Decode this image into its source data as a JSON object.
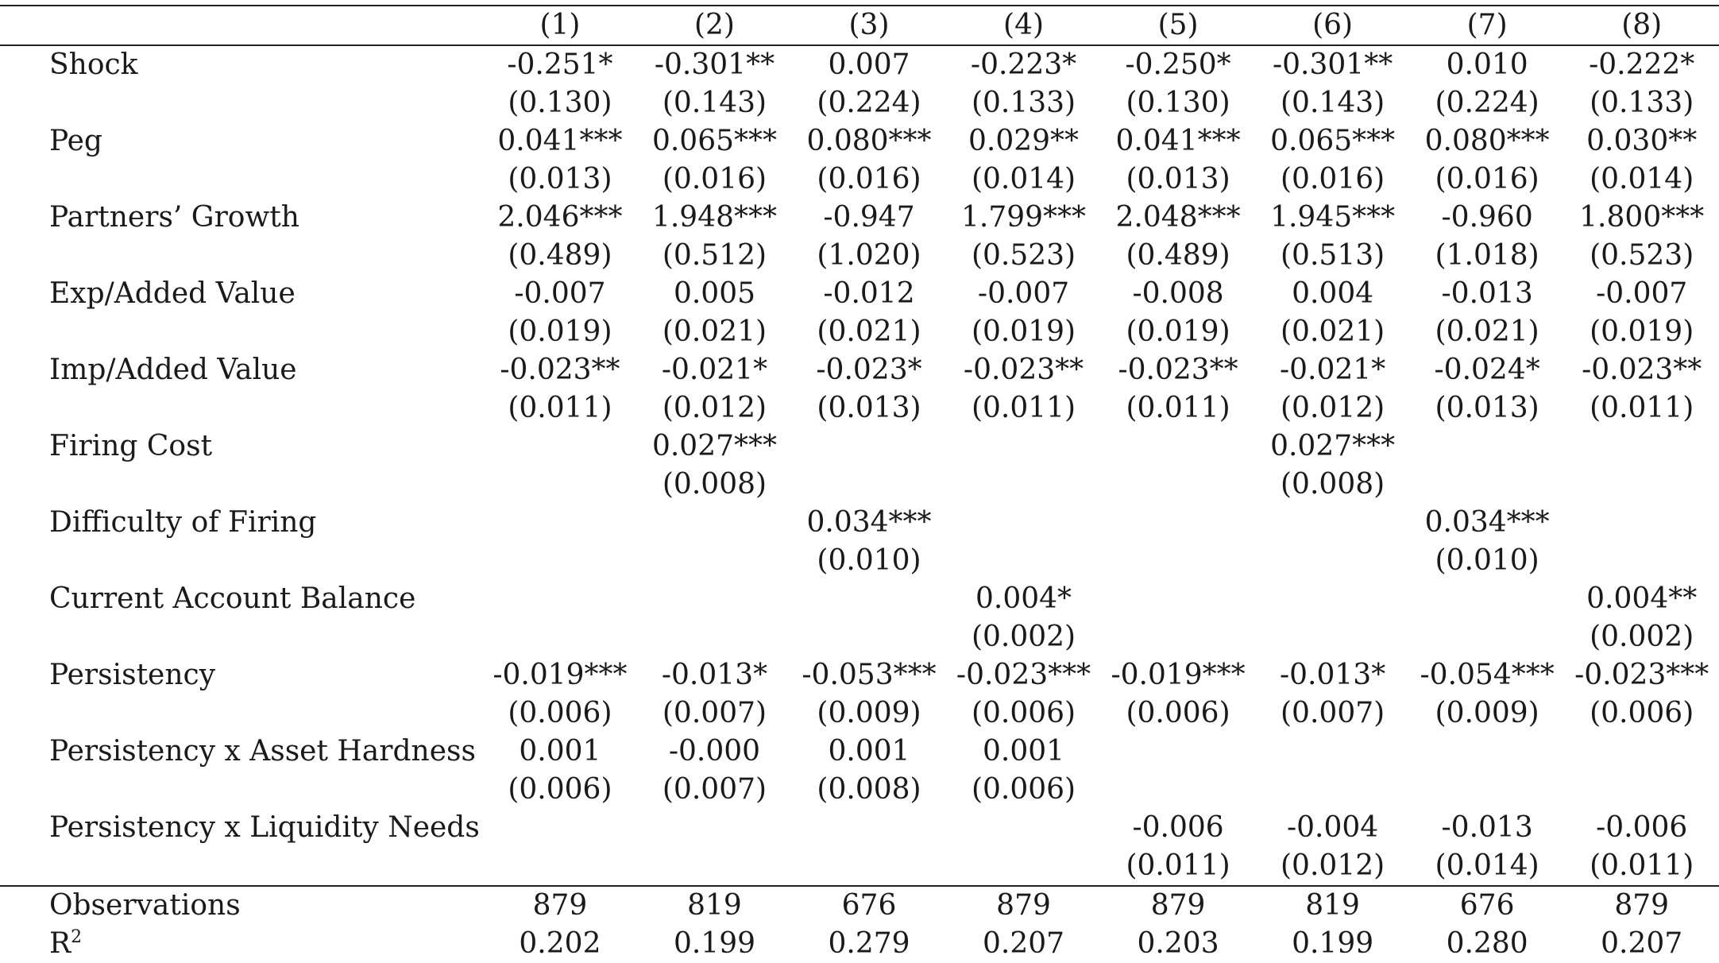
{
  "columns": [
    "(1)",
    "(2)",
    "(3)",
    "(4)",
    "(5)",
    "(6)",
    "(7)",
    "(8)"
  ],
  "rows": [
    {
      "label": "Shock",
      "coef": [
        "-0.251*",
        "-0.301**",
        "0.007",
        "-0.223*",
        "-0.250*",
        "-0.301**",
        "0.010",
        "-0.222*"
      ],
      "se": [
        "(0.130)",
        "(0.143)",
        "(0.224)",
        "(0.133)",
        "(0.130)",
        "(0.143)",
        "(0.224)",
        "(0.133)"
      ]
    },
    {
      "label": "Peg",
      "coef": [
        "0.041***",
        "0.065***",
        "0.080***",
        "0.029**",
        "0.041***",
        "0.065***",
        "0.080***",
        "0.030**"
      ],
      "se": [
        "(0.013)",
        "(0.016)",
        "(0.016)",
        "(0.014)",
        "(0.013)",
        "(0.016)",
        "(0.016)",
        "(0.014)"
      ]
    },
    {
      "label": "Partners’ Growth",
      "coef": [
        "2.046***",
        "1.948***",
        "-0.947",
        "1.799***",
        "2.048***",
        "1.945***",
        "-0.960",
        "1.800***"
      ],
      "se": [
        "(0.489)",
        "(0.512)",
        "(1.020)",
        "(0.523)",
        "(0.489)",
        "(0.513)",
        "(1.018)",
        "(0.523)"
      ]
    },
    {
      "label": "Exp/Added Value",
      "coef": [
        "-0.007",
        "0.005",
        "-0.012",
        "-0.007",
        "-0.008",
        "0.004",
        "-0.013",
        "-0.007"
      ],
      "se": [
        "(0.019)",
        "(0.021)",
        "(0.021)",
        "(0.019)",
        "(0.019)",
        "(0.021)",
        "(0.021)",
        "(0.019)"
      ]
    },
    {
      "label": "Imp/Added Value",
      "coef": [
        "-0.023**",
        "-0.021*",
        "-0.023*",
        "-0.023**",
        "-0.023**",
        "-0.021*",
        "-0.024*",
        "-0.023**"
      ],
      "se": [
        "(0.011)",
        "(0.012)",
        "(0.013)",
        "(0.011)",
        "(0.011)",
        "(0.012)",
        "(0.013)",
        "(0.011)"
      ]
    },
    {
      "label": "Firing Cost",
      "coef": [
        "",
        "0.027***",
        "",
        "",
        "",
        "0.027***",
        "",
        ""
      ],
      "se": [
        "",
        "(0.008)",
        "",
        "",
        "",
        "(0.008)",
        "",
        ""
      ]
    },
    {
      "label": "Difficulty of Firing",
      "coef": [
        "",
        "",
        "0.034***",
        "",
        "",
        "",
        "0.034***",
        ""
      ],
      "se": [
        "",
        "",
        "(0.010)",
        "",
        "",
        "",
        "(0.010)",
        ""
      ]
    },
    {
      "label": "Current Account Balance",
      "coef": [
        "",
        "",
        "",
        "0.004*",
        "",
        "",
        "",
        "0.004**"
      ],
      "se": [
        "",
        "",
        "",
        "(0.002)",
        "",
        "",
        "",
        "(0.002)"
      ]
    },
    {
      "label": "Persistency",
      "coef": [
        "-0.019***",
        "-0.013*",
        "-0.053***",
        "-0.023***",
        "-0.019***",
        "-0.013*",
        "-0.054***",
        "-0.023***"
      ],
      "se": [
        "(0.006)",
        "(0.007)",
        "(0.009)",
        "(0.006)",
        "(0.006)",
        "(0.007)",
        "(0.009)",
        "(0.006)"
      ]
    },
    {
      "label": "Persistency x Asset Hardness",
      "coef": [
        "0.001",
        "-0.000",
        "0.001",
        "0.001",
        "",
        "",
        "",
        ""
      ],
      "se": [
        "(0.006)",
        "(0.007)",
        "(0.008)",
        "(0.006)",
        "",
        "",
        "",
        ""
      ]
    },
    {
      "label": "Persistency x Liquidity Needs",
      "coef": [
        "",
        "",
        "",
        "",
        "-0.006",
        "-0.004",
        "-0.013",
        "-0.006"
      ],
      "se": [
        "",
        "",
        "",
        "",
        "(0.011)",
        "(0.012)",
        "(0.014)",
        "(0.011)"
      ]
    }
  ],
  "stats": [
    {
      "label": "Observations",
      "label_sup": "",
      "values": [
        "879",
        "819",
        "676",
        "879",
        "879",
        "819",
        "676",
        "879"
      ]
    },
    {
      "label": "R",
      "label_sup": "2",
      "values": [
        "0.202",
        "0.199",
        "0.279",
        "0.207",
        "0.203",
        "0.199",
        "0.280",
        "0.207"
      ]
    }
  ]
}
